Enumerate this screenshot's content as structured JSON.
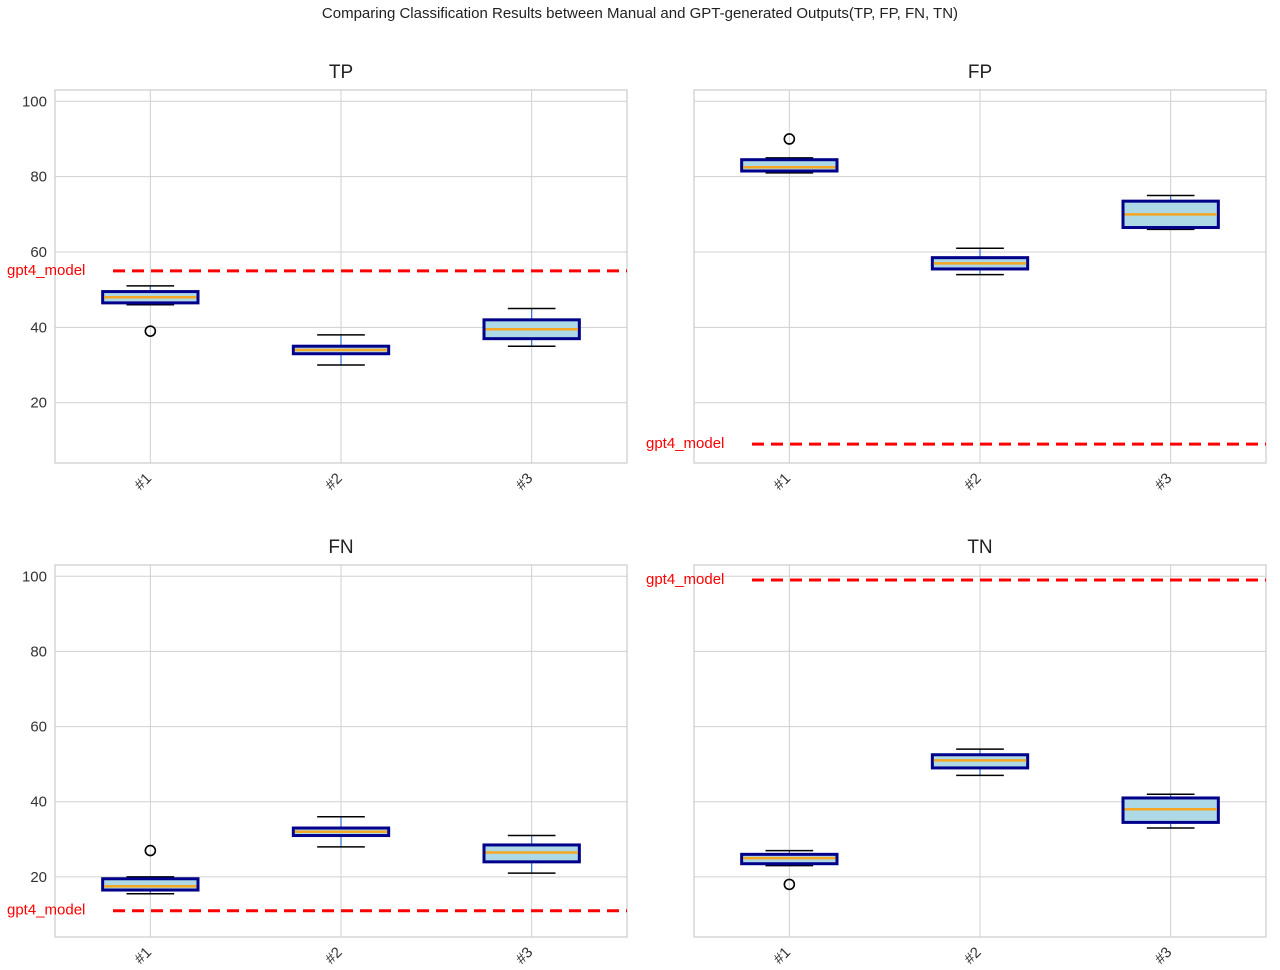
{
  "title": "Comparing Classification Results between Manual and GPT-generated Outputs(TP, FP, FN, TN)",
  "colors": {
    "box_edge": "#00008b",
    "box_fill": "#add8e6",
    "median": "#f5a623",
    "whisker": "#2a6fd6",
    "cap": "#000000",
    "reference": "#ff0000",
    "grid": "#d0d0d0",
    "spine": "#cccccc"
  },
  "chart_data": [
    {
      "type": "box",
      "title": "TP",
      "categories": [
        "#1",
        "#2",
        "#3"
      ],
      "ylim": [
        4,
        103
      ],
      "yticks": [
        20,
        40,
        60,
        80,
        100
      ],
      "boxes": [
        {
          "whislo": 46,
          "q1": 46.5,
          "med": 48,
          "q3": 49.5,
          "whishi": 51,
          "fliers": [
            39
          ]
        },
        {
          "whislo": 30,
          "q1": 33,
          "med": 34,
          "q3": 35,
          "whishi": 38,
          "fliers": []
        },
        {
          "whislo": 35,
          "q1": 37,
          "med": 39.5,
          "q3": 42,
          "whishi": 45,
          "fliers": []
        }
      ],
      "reference": {
        "label": "gpt4_model",
        "value": 55
      }
    },
    {
      "type": "box",
      "title": "FP",
      "categories": [
        "#1",
        "#2",
        "#3"
      ],
      "ylim": [
        4,
        103
      ],
      "yticks": [
        20,
        40,
        60,
        80,
        100
      ],
      "boxes": [
        {
          "whislo": 81,
          "q1": 81.5,
          "med": 82.5,
          "q3": 84.5,
          "whishi": 85,
          "fliers": [
            90
          ]
        },
        {
          "whislo": 54,
          "q1": 55.5,
          "med": 57,
          "q3": 58.5,
          "whishi": 61,
          "fliers": []
        },
        {
          "whislo": 66,
          "q1": 66.5,
          "med": 70,
          "q3": 73.5,
          "whishi": 75,
          "fliers": []
        }
      ],
      "reference": {
        "label": "gpt4_model",
        "value": 9
      }
    },
    {
      "type": "box",
      "title": "FN",
      "categories": [
        "#1",
        "#2",
        "#3"
      ],
      "ylim": [
        4,
        103
      ],
      "yticks": [
        20,
        40,
        60,
        80,
        100
      ],
      "boxes": [
        {
          "whislo": 15.5,
          "q1": 16.5,
          "med": 17.5,
          "q3": 19.5,
          "whishi": 20,
          "fliers": [
            27
          ]
        },
        {
          "whislo": 28,
          "q1": 31,
          "med": 32,
          "q3": 33,
          "whishi": 36,
          "fliers": []
        },
        {
          "whislo": 21,
          "q1": 24,
          "med": 26.5,
          "q3": 28.5,
          "whishi": 31,
          "fliers": []
        }
      ],
      "reference": {
        "label": "gpt4_model",
        "value": 11
      }
    },
    {
      "type": "box",
      "title": "TN",
      "categories": [
        "#1",
        "#2",
        "#3"
      ],
      "ylim": [
        4,
        103
      ],
      "yticks": [
        20,
        40,
        60,
        80,
        100
      ],
      "boxes": [
        {
          "whislo": 23,
          "q1": 23.5,
          "med": 25,
          "q3": 26,
          "whishi": 27,
          "fliers": [
            18
          ]
        },
        {
          "whislo": 47,
          "q1": 49,
          "med": 51,
          "q3": 52.5,
          "whishi": 54,
          "fliers": []
        },
        {
          "whislo": 33,
          "q1": 34.5,
          "med": 38,
          "q3": 41,
          "whishi": 42,
          "fliers": []
        }
      ],
      "reference": {
        "label": "gpt4_model",
        "value": 99
      }
    }
  ]
}
